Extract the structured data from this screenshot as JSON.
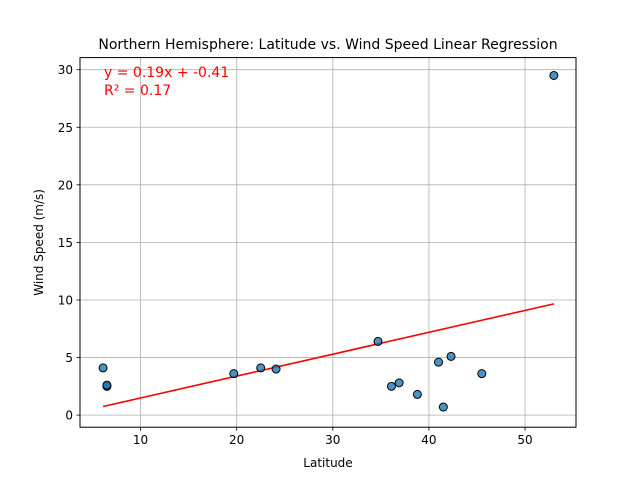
{
  "chart_data": {
    "type": "scatter",
    "title": "Northern Hemisphere: Latitude vs. Wind Speed Linear Regression",
    "xlabel": "Latitude",
    "ylabel": "Wind Speed (m/s)",
    "xlim": [
      3.7,
      55.3
    ],
    "ylim": [
      -1.05,
      31.05
    ],
    "xticks": [
      10,
      20,
      30,
      40,
      50
    ],
    "yticks": [
      0,
      5,
      10,
      15,
      20,
      25,
      30
    ],
    "grid": true,
    "points": [
      {
        "x": 6.1,
        "y": 4.1
      },
      {
        "x": 6.5,
        "y": 2.5
      },
      {
        "x": 6.5,
        "y": 2.6
      },
      {
        "x": 19.7,
        "y": 3.6
      },
      {
        "x": 22.5,
        "y": 4.1
      },
      {
        "x": 24.1,
        "y": 4.0
      },
      {
        "x": 34.7,
        "y": 6.4
      },
      {
        "x": 36.1,
        "y": 2.5
      },
      {
        "x": 36.9,
        "y": 2.8
      },
      {
        "x": 38.8,
        "y": 1.8
      },
      {
        "x": 41.0,
        "y": 4.6
      },
      {
        "x": 41.5,
        "y": 0.7
      },
      {
        "x": 42.3,
        "y": 5.1
      },
      {
        "x": 45.5,
        "y": 3.6
      },
      {
        "x": 53.0,
        "y": 29.5
      }
    ],
    "regression": {
      "slope": 0.19,
      "intercept": -0.41,
      "x_start": 6.1,
      "x_end": 53.0
    },
    "annotation": {
      "equation": "y = 0.19x + -0.41",
      "r_squared": "R² = 0.17"
    },
    "colors": {
      "points": "#1f77b4",
      "point_edge": "#000000",
      "line": "#ff0000",
      "annotation": "#ff0000",
      "grid": "#b0b0b0"
    }
  }
}
